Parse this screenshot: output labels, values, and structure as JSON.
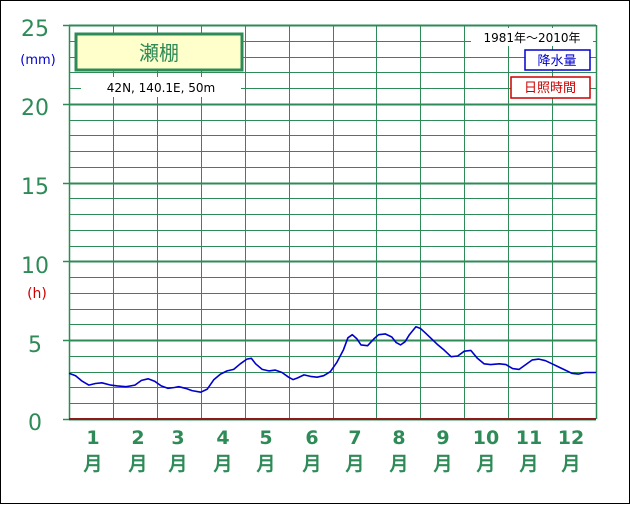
{
  "chart_data": {
    "type": "line",
    "station": "瀬棚",
    "location": "42N, 140.1E, 50m",
    "period": "1981年～2010年",
    "legend": [
      {
        "label": "降水量",
        "color": "#0000cc"
      },
      {
        "label": "日照時間",
        "color": "#cc0000"
      }
    ],
    "y_ticks": [
      "0",
      "5",
      "10",
      "15",
      "20",
      "25"
    ],
    "y_units": [
      {
        "label": "(mm)",
        "color": "#0000cc"
      },
      {
        "label": "(h)",
        "color": "#cc0000"
      }
    ],
    "ylim": [
      0,
      25
    ],
    "x_months": [
      {
        "num": "1",
        "unit": "月"
      },
      {
        "num": "2",
        "unit": "月"
      },
      {
        "num": "3",
        "unit": "月"
      },
      {
        "num": "4",
        "unit": "月"
      },
      {
        "num": "5",
        "unit": "月"
      },
      {
        "num": "6",
        "unit": "月"
      },
      {
        "num": "7",
        "unit": "月"
      },
      {
        "num": "8",
        "unit": "月"
      },
      {
        "num": "9",
        "unit": "月"
      },
      {
        "num": "10",
        "unit": "月"
      },
      {
        "num": "11",
        "unit": "月"
      },
      {
        "num": "12",
        "unit": "月"
      }
    ],
    "xlim": [
      0.5,
      12.5
    ],
    "grid": true,
    "series": [
      {
        "name": "降水量",
        "color": "#0000cc",
        "points": [
          [
            0.5,
            2.9
          ],
          [
            0.65,
            2.75
          ],
          [
            0.8,
            2.4
          ],
          [
            0.95,
            2.15
          ],
          [
            1.1,
            2.25
          ],
          [
            1.25,
            2.3
          ],
          [
            1.45,
            2.15
          ],
          [
            1.6,
            2.1
          ],
          [
            1.8,
            2.05
          ],
          [
            2.0,
            2.15
          ],
          [
            2.15,
            2.45
          ],
          [
            2.3,
            2.55
          ],
          [
            2.45,
            2.4
          ],
          [
            2.6,
            2.1
          ],
          [
            2.75,
            1.95
          ],
          [
            2.9,
            2.0
          ],
          [
            3.0,
            2.05
          ],
          [
            3.15,
            1.95
          ],
          [
            3.3,
            1.8
          ],
          [
            3.5,
            1.7
          ],
          [
            3.65,
            1.9
          ],
          [
            3.8,
            2.5
          ],
          [
            3.95,
            2.85
          ],
          [
            4.1,
            3.05
          ],
          [
            4.25,
            3.15
          ],
          [
            4.4,
            3.5
          ],
          [
            4.55,
            3.8
          ],
          [
            4.65,
            3.85
          ],
          [
            4.75,
            3.5
          ],
          [
            4.9,
            3.15
          ],
          [
            5.05,
            3.05
          ],
          [
            5.2,
            3.1
          ],
          [
            5.35,
            2.95
          ],
          [
            5.5,
            2.65
          ],
          [
            5.6,
            2.5
          ],
          [
            5.7,
            2.6
          ],
          [
            5.85,
            2.8
          ],
          [
            6.0,
            2.7
          ],
          [
            6.15,
            2.65
          ],
          [
            6.3,
            2.75
          ],
          [
            6.45,
            3.0
          ],
          [
            6.6,
            3.6
          ],
          [
            6.75,
            4.4
          ],
          [
            6.85,
            5.15
          ],
          [
            6.95,
            5.35
          ],
          [
            7.05,
            5.1
          ],
          [
            7.15,
            4.7
          ],
          [
            7.3,
            4.65
          ],
          [
            7.45,
            5.1
          ],
          [
            7.55,
            5.35
          ],
          [
            7.7,
            5.4
          ],
          [
            7.85,
            5.2
          ],
          [
            7.95,
            4.85
          ],
          [
            8.05,
            4.7
          ],
          [
            8.15,
            4.9
          ],
          [
            8.25,
            5.35
          ],
          [
            8.4,
            5.85
          ],
          [
            8.5,
            5.75
          ],
          [
            8.6,
            5.5
          ],
          [
            8.75,
            5.1
          ],
          [
            8.9,
            4.7
          ],
          [
            9.05,
            4.35
          ],
          [
            9.2,
            3.95
          ],
          [
            9.35,
            4.0
          ],
          [
            9.5,
            4.3
          ],
          [
            9.65,
            4.35
          ],
          [
            9.8,
            3.85
          ],
          [
            9.95,
            3.5
          ],
          [
            10.1,
            3.45
          ],
          [
            10.3,
            3.5
          ],
          [
            10.45,
            3.45
          ],
          [
            10.6,
            3.2
          ],
          [
            10.75,
            3.15
          ],
          [
            10.9,
            3.45
          ],
          [
            11.05,
            3.75
          ],
          [
            11.2,
            3.8
          ],
          [
            11.35,
            3.7
          ],
          [
            11.5,
            3.5
          ],
          [
            11.65,
            3.3
          ],
          [
            11.8,
            3.1
          ],
          [
            11.95,
            2.9
          ],
          [
            12.1,
            2.85
          ],
          [
            12.25,
            2.95
          ],
          [
            12.5,
            2.95
          ]
        ]
      },
      {
        "name": "日照時間",
        "color": "#cc0000",
        "points": []
      }
    ]
  }
}
